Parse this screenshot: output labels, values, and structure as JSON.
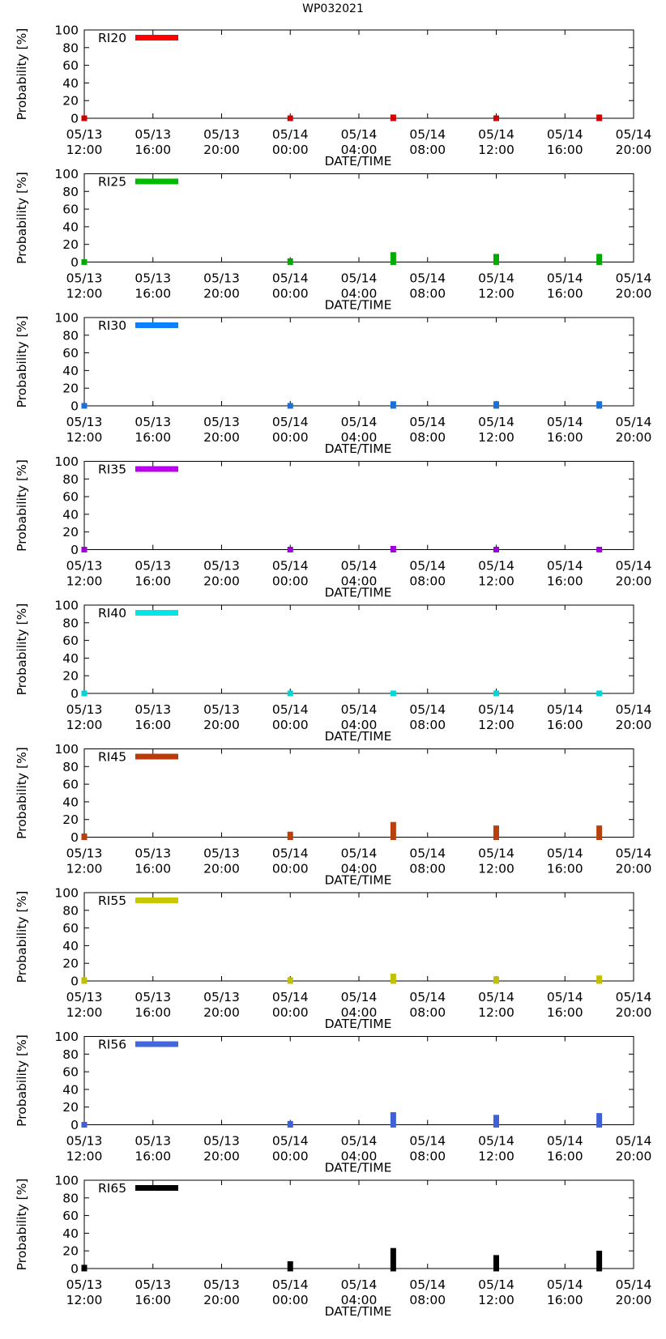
{
  "figure_title": "WP032021",
  "chart_data": [
    {
      "type": "bar",
      "legend": "RI20",
      "color": "#ff0000",
      "marker_color": "#d00000",
      "x": [
        "05/13 12:00",
        "05/14 00:00",
        "05/14 06:00",
        "05/14 12:00",
        "05/14 18:00"
      ],
      "values": [
        0,
        0,
        1,
        0,
        1
      ],
      "xlabel": "DATE/TIME",
      "ylabel": "Probability [%]",
      "ylim": [
        0,
        100
      ],
      "yticks": [
        "0",
        "20",
        "40",
        "60",
        "80",
        "100"
      ],
      "xtick_dates": [
        "05/13",
        "05/13",
        "05/13",
        "05/14",
        "05/14",
        "05/14",
        "05/14",
        "05/14",
        "05/14"
      ],
      "xtick_times": [
        "12:00",
        "16:00",
        "20:00",
        "00:00",
        "04:00",
        "08:00",
        "12:00",
        "16:00",
        "20:00"
      ]
    },
    {
      "type": "bar",
      "legend": "RI25",
      "color": "#00bb00",
      "marker_color": "#00aa00",
      "x": [
        "05/13 12:00",
        "05/14 00:00",
        "05/14 06:00",
        "05/14 12:00",
        "05/14 18:00"
      ],
      "values": [
        0,
        1,
        8,
        6,
        6
      ],
      "xlabel": "DATE/TIME",
      "ylabel": "Probability [%]",
      "ylim": [
        0,
        100
      ],
      "yticks": [
        "0",
        "20",
        "40",
        "60",
        "80",
        "100"
      ],
      "xtick_dates": [
        "05/13",
        "05/13",
        "05/13",
        "05/14",
        "05/14",
        "05/14",
        "05/14",
        "05/14",
        "05/14"
      ],
      "xtick_times": [
        "12:00",
        "16:00",
        "20:00",
        "00:00",
        "04:00",
        "08:00",
        "12:00",
        "16:00",
        "20:00"
      ]
    },
    {
      "type": "bar",
      "legend": "RI30",
      "color": "#0b80ff",
      "marker_color": "#1870d8",
      "x": [
        "05/13 12:00",
        "05/14 00:00",
        "05/14 06:00",
        "05/14 12:00",
        "05/14 18:00"
      ],
      "values": [
        0,
        0,
        2,
        2,
        2
      ],
      "xlabel": "DATE/TIME",
      "ylabel": "Probability [%]",
      "ylim": [
        0,
        100
      ],
      "yticks": [
        "0",
        "20",
        "40",
        "60",
        "80",
        "100"
      ],
      "xtick_dates": [
        "05/13",
        "05/13",
        "05/13",
        "05/14",
        "05/14",
        "05/14",
        "05/14",
        "05/14",
        "05/14"
      ],
      "xtick_times": [
        "12:00",
        "16:00",
        "20:00",
        "00:00",
        "04:00",
        "08:00",
        "12:00",
        "16:00",
        "20:00"
      ]
    },
    {
      "type": "bar",
      "legend": "RI35",
      "color": "#bb00ee",
      "marker_color": "#a000d8",
      "x": [
        "05/13 12:00",
        "05/14 00:00",
        "05/14 06:00",
        "05/14 12:00",
        "05/14 18:00"
      ],
      "values": [
        0,
        0,
        1,
        0,
        0
      ],
      "xlabel": "DATE/TIME",
      "ylabel": "Probability [%]",
      "ylim": [
        0,
        100
      ],
      "yticks": [
        "0",
        "20",
        "40",
        "60",
        "80",
        "100"
      ],
      "xtick_dates": [
        "05/13",
        "05/13",
        "05/13",
        "05/14",
        "05/14",
        "05/14",
        "05/14",
        "05/14",
        "05/14"
      ],
      "xtick_times": [
        "12:00",
        "16:00",
        "20:00",
        "00:00",
        "04:00",
        "08:00",
        "12:00",
        "16:00",
        "20:00"
      ]
    },
    {
      "type": "bar",
      "legend": "RI40",
      "color": "#00e5e5",
      "marker_color": "#00d8d8",
      "x": [
        "05/13 12:00",
        "05/14 00:00",
        "05/14 06:00",
        "05/14 12:00",
        "05/14 18:00"
      ],
      "values": [
        0,
        0,
        0,
        0,
        0
      ],
      "xlabel": "DATE/TIME",
      "ylabel": "Probability [%]",
      "ylim": [
        0,
        100
      ],
      "yticks": [
        "0",
        "20",
        "40",
        "60",
        "80",
        "100"
      ],
      "xtick_dates": [
        "05/13",
        "05/13",
        "05/13",
        "05/14",
        "05/14",
        "05/14",
        "05/14",
        "05/14",
        "05/14"
      ],
      "xtick_times": [
        "12:00",
        "16:00",
        "20:00",
        "00:00",
        "04:00",
        "08:00",
        "12:00",
        "16:00",
        "20:00"
      ]
    },
    {
      "type": "bar",
      "legend": "RI45",
      "color": "#bb3a0a",
      "marker_color": "#b8400c",
      "x": [
        "05/13 12:00",
        "05/14 00:00",
        "05/14 06:00",
        "05/14 12:00",
        "05/14 18:00"
      ],
      "values": [
        1,
        3,
        14,
        10,
        10
      ],
      "xlabel": "DATE/TIME",
      "ylabel": "Probability [%]",
      "ylim": [
        0,
        100
      ],
      "yticks": [
        "0",
        "20",
        "40",
        "60",
        "80",
        "100"
      ],
      "xtick_dates": [
        "05/13",
        "05/13",
        "05/13",
        "05/14",
        "05/14",
        "05/14",
        "05/14",
        "05/14",
        "05/14"
      ],
      "xtick_times": [
        "12:00",
        "16:00",
        "20:00",
        "00:00",
        "04:00",
        "08:00",
        "12:00",
        "16:00",
        "20:00"
      ]
    },
    {
      "type": "bar",
      "legend": "RI55",
      "color": "#c8c800",
      "marker_color": "#c0c000",
      "x": [
        "05/13 12:00",
        "05/14 00:00",
        "05/14 06:00",
        "05/14 12:00",
        "05/14 18:00"
      ],
      "values": [
        1,
        1,
        5,
        2,
        3
      ],
      "xlabel": "DATE/TIME",
      "ylabel": "Probability [%]",
      "ylim": [
        0,
        100
      ],
      "yticks": [
        "0",
        "20",
        "40",
        "60",
        "80",
        "100"
      ],
      "xtick_dates": [
        "05/13",
        "05/13",
        "05/13",
        "05/14",
        "05/14",
        "05/14",
        "05/14",
        "05/14",
        "05/14"
      ],
      "xtick_times": [
        "12:00",
        "16:00",
        "20:00",
        "00:00",
        "04:00",
        "08:00",
        "12:00",
        "16:00",
        "20:00"
      ]
    },
    {
      "type": "bar",
      "legend": "RI56",
      "color": "#4466dd",
      "marker_color": "#4060d8",
      "x": [
        "05/13 12:00",
        "05/14 00:00",
        "05/14 06:00",
        "05/14 12:00",
        "05/14 18:00"
      ],
      "values": [
        0,
        1,
        11,
        8,
        10
      ],
      "xlabel": "DATE/TIME",
      "ylabel": "Probability [%]",
      "ylim": [
        0,
        100
      ],
      "yticks": [
        "0",
        "20",
        "40",
        "60",
        "80",
        "100"
      ],
      "xtick_dates": [
        "05/13",
        "05/13",
        "05/13",
        "05/14",
        "05/14",
        "05/14",
        "05/14",
        "05/14",
        "05/14"
      ],
      "xtick_times": [
        "12:00",
        "16:00",
        "20:00",
        "00:00",
        "04:00",
        "08:00",
        "12:00",
        "16:00",
        "20:00"
      ]
    },
    {
      "type": "bar",
      "legend": "RI65",
      "color": "#000000",
      "marker_color": "#000000",
      "x": [
        "05/13 12:00",
        "05/14 00:00",
        "05/14 06:00",
        "05/14 12:00",
        "05/14 18:00"
      ],
      "values": [
        1,
        5,
        20,
        12,
        17
      ],
      "xlabel": "DATE/TIME",
      "ylabel": "Probability [%]",
      "ylim": [
        0,
        100
      ],
      "yticks": [
        "0",
        "20",
        "40",
        "60",
        "80",
        "100"
      ],
      "xtick_dates": [
        "05/13",
        "05/13",
        "05/13",
        "05/14",
        "05/14",
        "05/14",
        "05/14",
        "05/14",
        "05/14"
      ],
      "xtick_times": [
        "12:00",
        "16:00",
        "20:00",
        "00:00",
        "04:00",
        "08:00",
        "12:00",
        "16:00",
        "20:00"
      ]
    }
  ]
}
